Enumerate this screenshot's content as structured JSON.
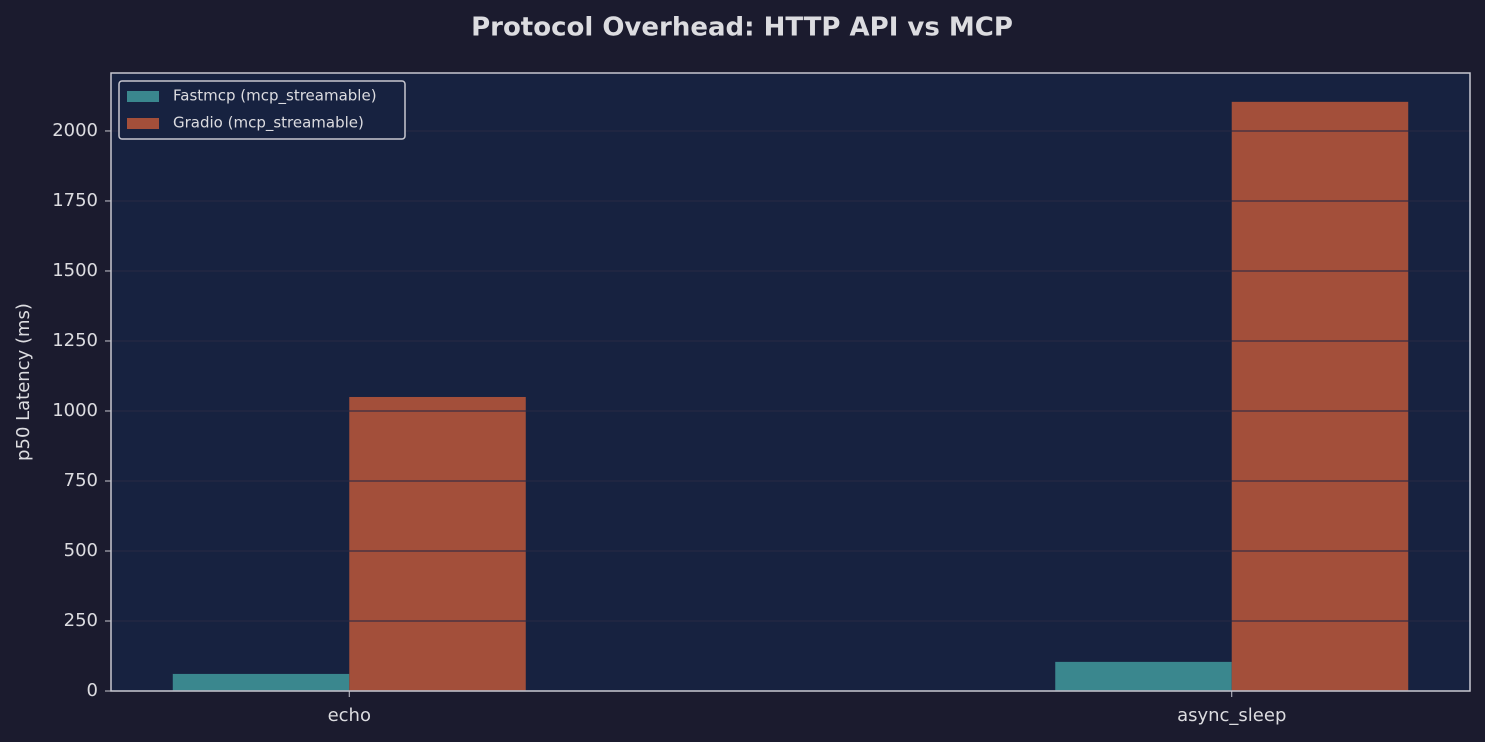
{
  "chart_data": {
    "type": "bar",
    "title": "Protocol Overhead: HTTP API vs MCP",
    "y_label": "p50 Latency (ms)",
    "categories": [
      "echo",
      "async_sleep"
    ],
    "series": [
      {
        "name": "Fastmcp (mcp_streamable)",
        "color": "#3a878e",
        "values": [
          61,
          104
        ]
      },
      {
        "name": "Gradio (mcp_streamable)",
        "color": "#a34f3a",
        "values": [
          1050,
          2104
        ]
      }
    ],
    "ylim": [
      0,
      2207
    ],
    "yticks": [
      0,
      250,
      500,
      750,
      1000,
      1250,
      1500,
      1750,
      2000
    ],
    "grid": true,
    "legend": "upper-left"
  }
}
